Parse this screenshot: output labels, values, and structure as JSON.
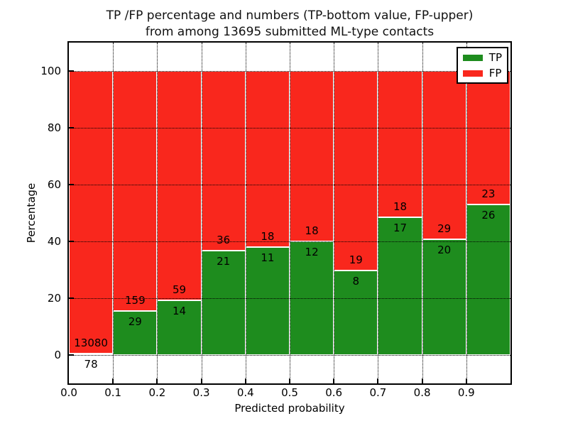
{
  "chart_data": {
    "type": "bar",
    "variant": "stacked-percentage-histogram",
    "title_line1": "TP /FP percentage and numbers (TP-bottom value, FP-upper)",
    "title_line2": "from among 13695 submitted ML-type contacts",
    "xlabel": "Predicted probability",
    "ylabel": "Percentage",
    "x_tick_labels": [
      "0.0",
      "0.1",
      "0.2",
      "0.3",
      "0.4",
      "0.5",
      "0.6",
      "0.7",
      "0.8",
      "0.9"
    ],
    "y_ticks": [
      0,
      20,
      40,
      60,
      80,
      100
    ],
    "y_tick_labels": [
      "0",
      "20",
      "40",
      "60",
      "80",
      "100"
    ],
    "xlim": [
      0.0,
      1.0
    ],
    "ylim": [
      -10,
      110
    ],
    "bin_width": 0.1,
    "grid": {
      "style": "dotted",
      "color": "#000000",
      "above_bars": true
    },
    "bar_edge_color": "#ffffff",
    "total_contacts": 13695,
    "series": [
      {
        "name": "TP",
        "color": "#1e8c1e",
        "counts": [
          78,
          29,
          14,
          21,
          11,
          12,
          8,
          17,
          20,
          26
        ]
      },
      {
        "name": "FP",
        "color": "#f9271d",
        "counts": [
          13080,
          159,
          59,
          36,
          18,
          18,
          19,
          18,
          29,
          23
        ]
      }
    ],
    "tp_percent": [
      0.59,
      15.43,
      19.18,
      36.84,
      37.93,
      40.0,
      29.63,
      48.57,
      40.82,
      53.06
    ],
    "bar_value_labels": "TP count printed below the stack boundary, FP count printed above it",
    "legend": {
      "position": "upper-right",
      "entries": [
        {
          "label": "TP",
          "color": "#1e8c1e"
        },
        {
          "label": "FP",
          "color": "#f9271d"
        }
      ]
    }
  }
}
